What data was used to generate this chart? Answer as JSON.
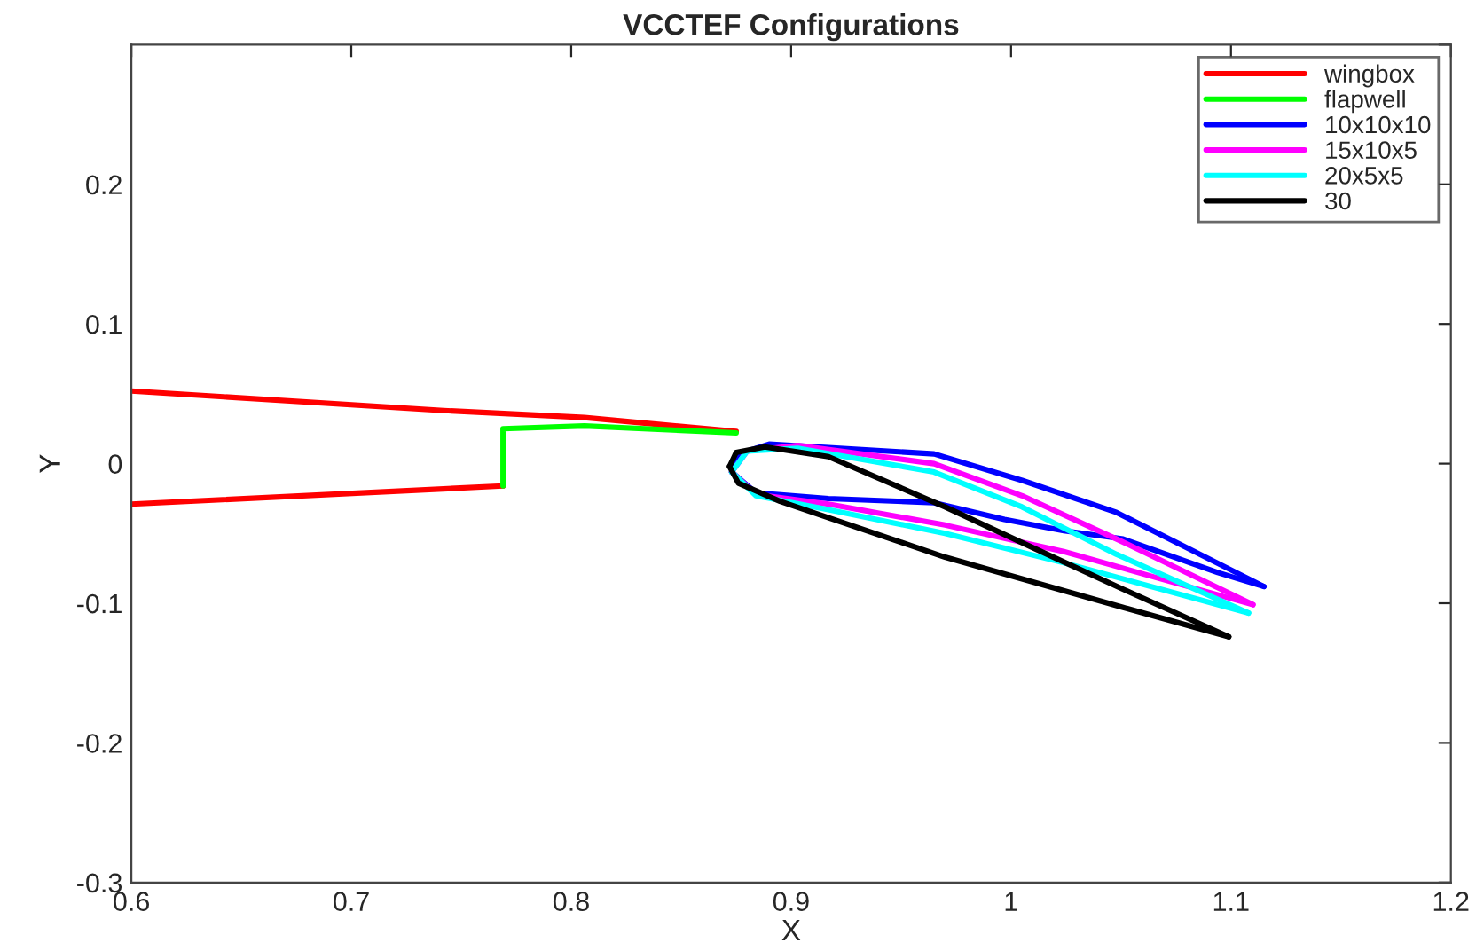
{
  "chart_data": {
    "type": "line",
    "title": "VCCTEF Configurations",
    "xlabel": "X",
    "ylabel": "Y",
    "xlim": [
      0.6,
      1.2
    ],
    "xticks": [
      0.6,
      0.7,
      0.8,
      0.9,
      1,
      1.1,
      1.2
    ],
    "ylim": [
      -0.3,
      0.3
    ],
    "yticks": [
      -0.3,
      -0.2,
      -0.1,
      0,
      0.1,
      0.2,
      {
        "value": 0.3,
        "label": null
      }
    ],
    "grid": false,
    "legend": "top right",
    "line_style": "solid",
    "marker": "none",
    "series": [
      {
        "name": "wingbox",
        "color": "#ff0000",
        "x": [
          0.6,
          0.742,
          0.806,
          0.875
        ],
        "values": [
          0.052,
          0.038,
          0.033,
          0.023
        ]
      },
      {
        "color": "#ff0000",
        "x": [
          0.6,
          0.769
        ],
        "values": [
          -0.029,
          -0.016
        ]
      },
      {
        "name": "flapwell",
        "color": "#00ff00",
        "x": [
          0.769,
          0.769,
          0.806,
          0.875
        ],
        "values": [
          -0.016,
          0.025,
          0.027,
          0.022
        ]
      },
      {
        "name": "10x10x10",
        "color": "#0000ff",
        "x": [
          0.873,
          0.876,
          0.89,
          0.965,
          1.005,
          1.048,
          1.115
        ],
        "values": [
          -0.006,
          0.007,
          0.014,
          0.007,
          -0.012,
          -0.035,
          -0.088
        ]
      },
      {
        "color": "#0000ff",
        "x": [
          0.873,
          0.884,
          0.917,
          0.965,
          0.997,
          1.024,
          1.051,
          1.094,
          1.115
        ],
        "values": [
          -0.006,
          -0.021,
          -0.025,
          -0.028,
          -0.04,
          -0.048,
          -0.054,
          -0.078,
          -0.088
        ]
      },
      {
        "name": "15x10x5",
        "color": "#ff00ff",
        "x": [
          0.873,
          0.88,
          0.903,
          0.965,
          1.005,
          1.048,
          1.11
        ],
        "values": [
          -0.006,
          0.009,
          0.013,
          0.0,
          -0.023,
          -0.054,
          -0.101
        ]
      },
      {
        "color": "#ff00ff",
        "x": [
          0.873,
          0.884,
          0.917,
          0.97,
          1.024,
          1.11
        ],
        "values": [
          -0.006,
          -0.022,
          -0.029,
          -0.044,
          -0.063,
          -0.101
        ]
      },
      {
        "name": "20x5x5",
        "color": "#00ffff",
        "x": [
          0.873,
          0.88,
          0.903,
          0.965,
          1.005,
          1.048,
          1.108
        ],
        "values": [
          -0.006,
          0.009,
          0.011,
          -0.006,
          -0.031,
          -0.065,
          -0.107
        ]
      },
      {
        "color": "#00ffff",
        "x": [
          0.873,
          0.884,
          0.917,
          0.97,
          1.024,
          1.108
        ],
        "values": [
          -0.006,
          -0.023,
          -0.033,
          -0.05,
          -0.071,
          -0.107
        ]
      },
      {
        "name": "30",
        "color": "#000000",
        "x": [
          0.872,
          0.875,
          0.888,
          0.917,
          0.97,
          1.011,
          1.051,
          1.099
        ],
        "values": [
          -0.002,
          0.008,
          0.012,
          0.005,
          -0.031,
          -0.061,
          -0.09,
          -0.124
        ]
      },
      {
        "color": "#000000",
        "x": [
          0.872,
          0.876,
          0.895,
          0.97,
          1.051,
          1.099
        ],
        "values": [
          -0.002,
          -0.014,
          -0.027,
          -0.067,
          -0.103,
          -0.124
        ]
      }
    ]
  }
}
